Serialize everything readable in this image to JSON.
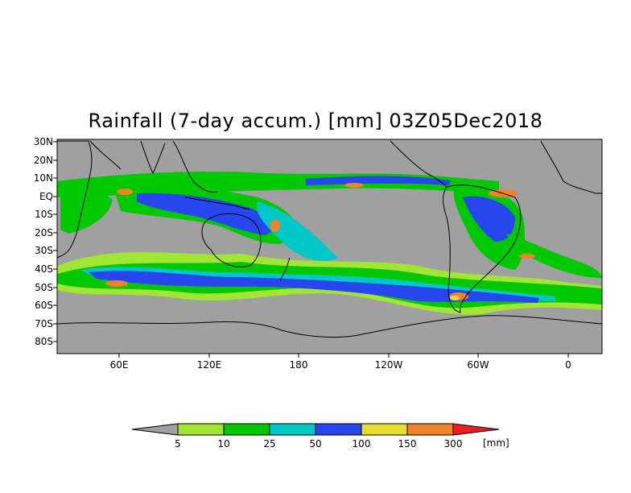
{
  "title": "Rainfall (7-day accum.) [mm] 03Z05Dec2018",
  "lat_labels": [
    "30N",
    "20N",
    "10N",
    "EQ",
    "10S",
    "20S",
    "30S",
    "40S",
    "50S",
    "60S",
    "70S",
    "80S"
  ],
  "lon_labels": [
    "60E",
    "120E",
    "180",
    "120W",
    "60W",
    "0"
  ],
  "colorbar": {
    "levels": [
      "5",
      "10",
      "25",
      "50",
      "100",
      "150",
      "300"
    ],
    "unit": "[mm]",
    "colors": [
      "#a0a0a0",
      "#a0e632",
      "#00c800",
      "#00c8c8",
      "#2846f0",
      "#e6dc32",
      "#f08228",
      "#f01e1e"
    ]
  },
  "land_color": "#a0a0a0",
  "coastline_color": "#000000"
}
